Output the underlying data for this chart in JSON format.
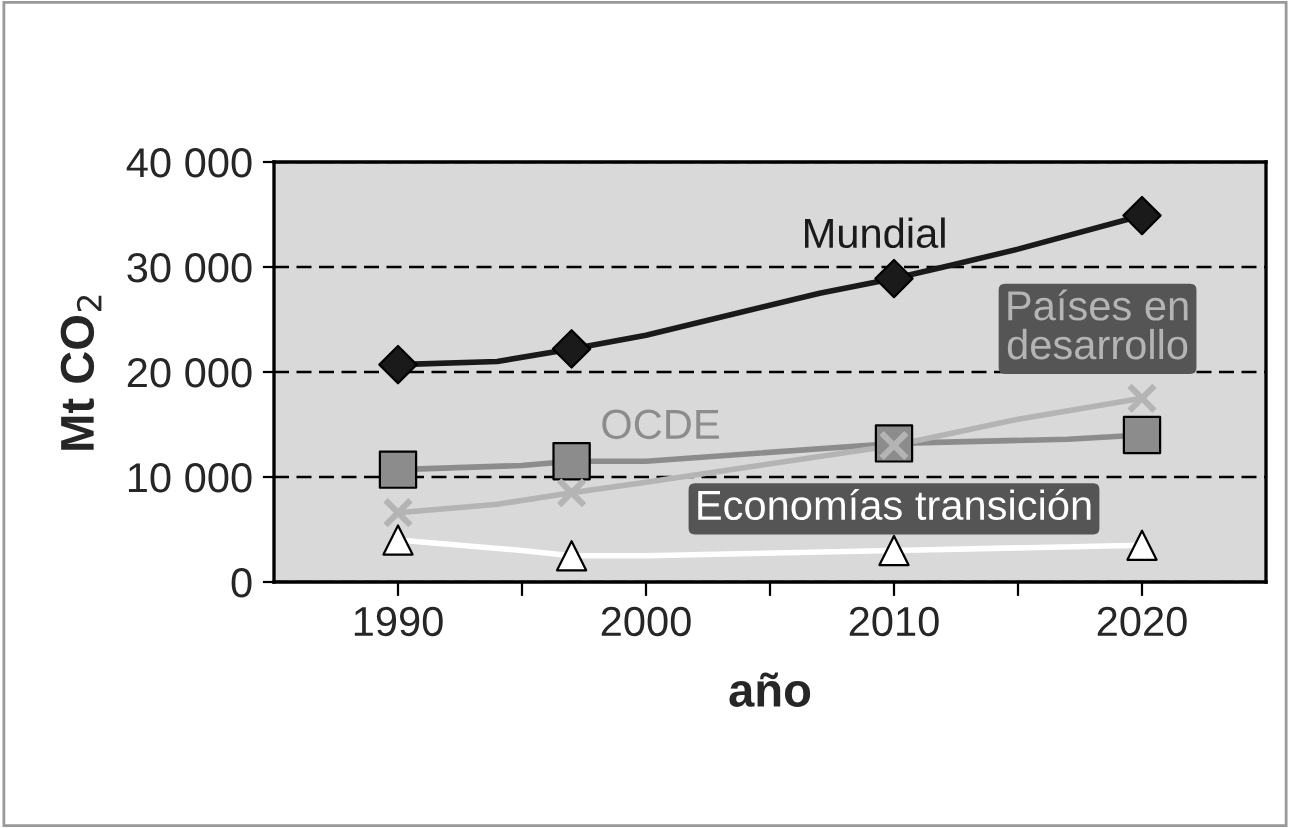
{
  "chart_data": {
    "type": "line",
    "xlabel": "año",
    "ylabel": "Mt CO$_{2}$",
    "xlim": [
      1985,
      2025
    ],
    "xticks": [
      1990,
      {
        "value": 1995,
        "label": null
      },
      2000,
      {
        "value": 2005,
        "label": null
      },
      2010,
      {
        "value": 2015,
        "label": null
      },
      2020
    ],
    "ylim": [
      0,
      40000
    ],
    "yticks": [
      {
        "value": 0,
        "label": "0"
      },
      {
        "value": 10000,
        "label": "10 000"
      },
      {
        "value": 20000,
        "label": "20 000"
      },
      {
        "value": 30000,
        "label": "30 000"
      },
      {
        "value": 40000,
        "label": "40 000"
      }
    ],
    "grid": "y",
    "legend": false,
    "series": [
      {
        "color": "#1a1a1a",
        "x": [
          1990,
          1994,
          1997,
          2000,
          2007,
          2010,
          2012,
          2015,
          2020
        ],
        "values": [
          20700,
          21000,
          22200,
          23500,
          27500,
          28900,
          30000,
          31700,
          34900
        ]
      },
      {
        "color": "#8c8c8c",
        "x": [
          1990,
          1995,
          1997,
          2000,
          2010,
          2017,
          2020
        ],
        "values": [
          10700,
          11100,
          11500,
          11500,
          13200,
          13600,
          14000
        ]
      },
      {
        "color": "#b4b4b4",
        "x": [
          1990,
          1994,
          1997,
          2000,
          2010,
          2015,
          2020
        ],
        "values": [
          6600,
          7400,
          8500,
          9500,
          13000,
          15500,
          17500
        ]
      },
      {
        "color": "#ffffff",
        "x": [
          1990,
          1995,
          1997,
          2000,
          2010,
          2020
        ],
        "values": [
          4000,
          3000,
          2500,
          2500,
          3000,
          3500
        ]
      },
      {
        "type": "scatter",
        "name": "Mundial",
        "color": "#1a1a1a",
        "marker": "diamond",
        "x": [
          1990,
          1997,
          2010,
          2020
        ],
        "values": [
          20700,
          22200,
          28900,
          34900
        ]
      },
      {
        "type": "scatter",
        "name": "OCDE",
        "color": "#8c8c8c",
        "marker": "square",
        "x": [
          1990,
          1997,
          2010,
          2020
        ],
        "values": [
          10700,
          11500,
          13200,
          14000
        ]
      },
      {
        "type": "scatter",
        "name": "Países en\ndesarrollo",
        "color": "#b4b4b4",
        "marker": "cross",
        "x": [
          1990,
          1997,
          2010,
          2020
        ],
        "values": [
          6600,
          8500,
          13000,
          17500
        ]
      },
      {
        "type": "scatter",
        "name": "Economías transición",
        "color": "#ffffff",
        "marker": "triangle",
        "x": [
          1990,
          1997,
          2010,
          2020
        ],
        "values": [
          4000,
          2500,
          3000,
          3500
        ]
      }
    ]
  }
}
